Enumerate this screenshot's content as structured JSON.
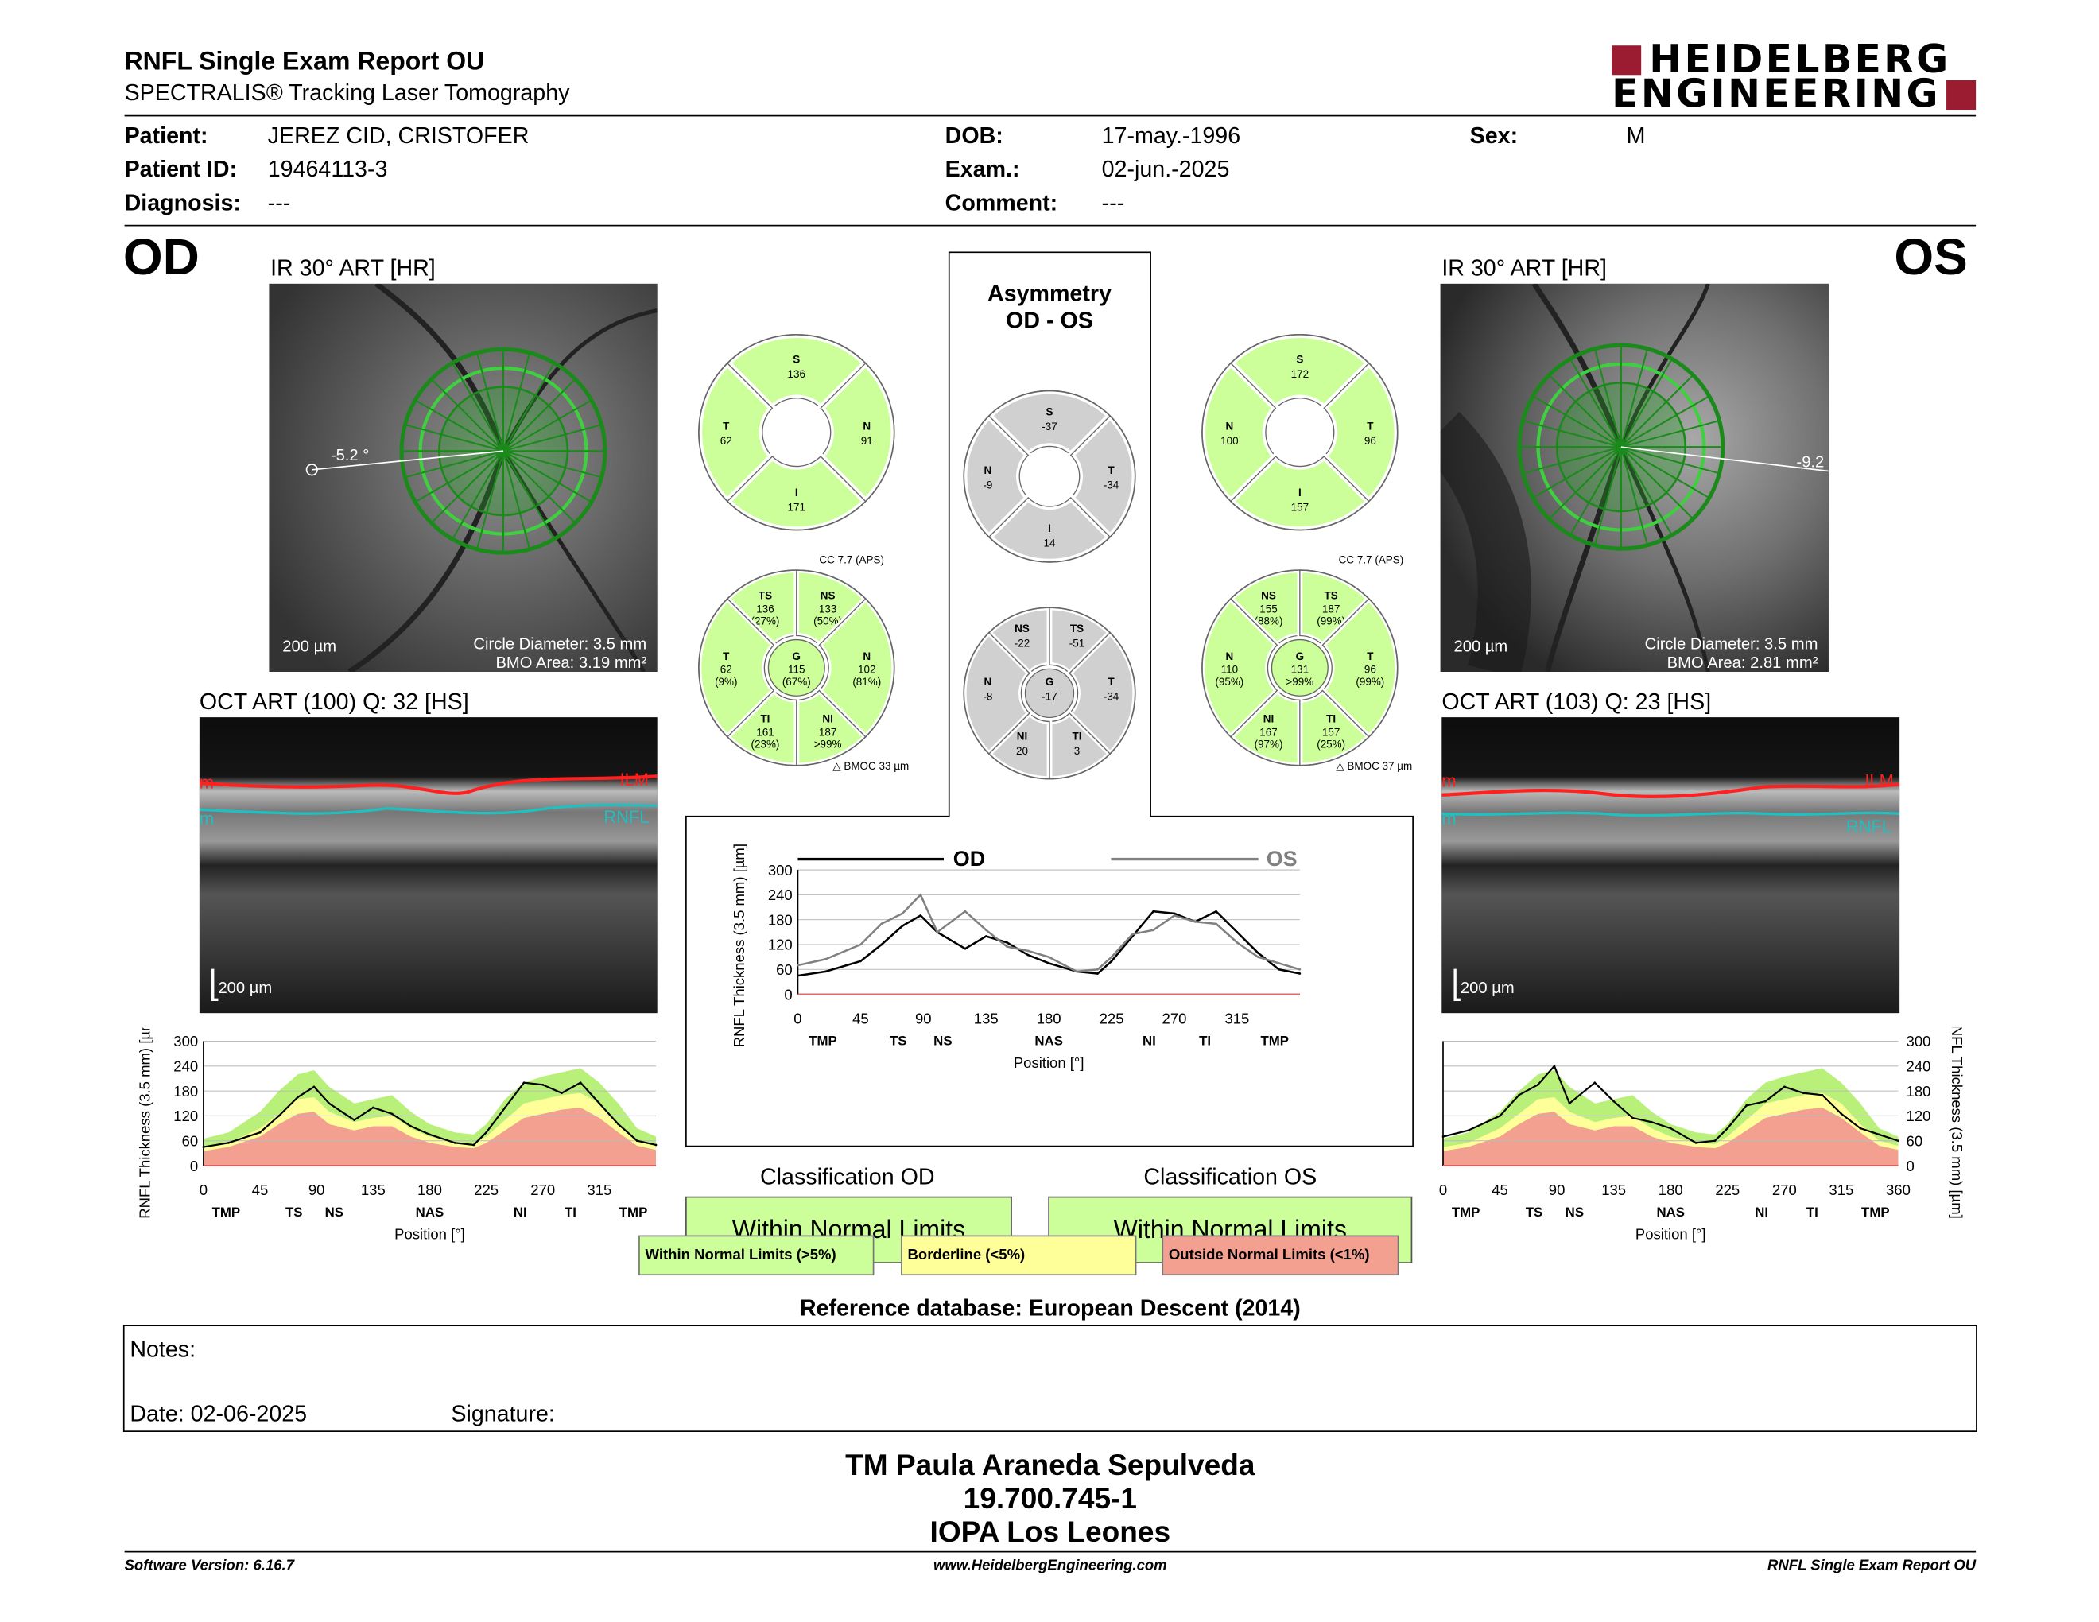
{
  "report": {
    "title": "RNFL Single Exam Report OU",
    "subtitle": "SPECTRALIS® Tracking Laser Tomography",
    "logo_line1": "HEIDELBERG",
    "logo_line2": "ENGINEERING"
  },
  "patient": {
    "patient_label": "Patient:",
    "patient_value": "JEREZ CID, CRISTOFER",
    "id_label": "Patient ID:",
    "id_value": "19464113-3",
    "diagnosis_label": "Diagnosis:",
    "diagnosis_value": "---",
    "dob_label": "DOB:",
    "dob_value": "17-may.-1996",
    "exam_label": "Exam.:",
    "exam_value": "02-jun.-2025",
    "comment_label": "Comment:",
    "comment_value": "---",
    "sex_label": "Sex:",
    "sex_value": "M"
  },
  "od": {
    "eye": "OD",
    "ir_title": "IR 30° ART [HR]",
    "angle": "-5.2 °",
    "scale": "200 µm",
    "circle_diameter": "Circle Diameter: 3.5 mm",
    "bmo_area": "BMO Area: 3.19 mm²",
    "oct_title": "OCT ART (100) Q: 32 [HS]",
    "oct_scale": "200 µm",
    "ilm": "ILM",
    "rnfl": "RNFL",
    "edge_m": "m",
    "classification_title": "Classification OD",
    "classification": "Within Normal Limits",
    "sectors4": {
      "S": "136",
      "T": "62",
      "N": "91",
      "I": "171"
    },
    "sectors6": {
      "TS": [
        "136",
        "(27%)"
      ],
      "NS": [
        "133",
        "(50%)"
      ],
      "T": [
        "62",
        "(9%)"
      ],
      "G": [
        "115",
        "(67%)"
      ],
      "N": [
        "102",
        "(81%)"
      ],
      "TI": [
        "161",
        "(23%)"
      ],
      "NI": [
        "187",
        ">99%"
      ]
    },
    "cc": "CC 7.7 (APS)",
    "bmoc": "BMOC 33 µm"
  },
  "os": {
    "eye": "OS",
    "ir_title": "IR 30° ART [HR]",
    "angle": "-9.2",
    "scale": "200 µm",
    "circle_diameter": "Circle Diameter: 3.5 mm",
    "bmo_area": "BMO Area: 2.81 mm²",
    "oct_title": "OCT ART (103) Q: 23 [HS]",
    "oct_scale": "200 µm",
    "ilm": "ILM",
    "rnfl": "RNFL",
    "edge_m": "m",
    "classification_title": "Classification OS",
    "classification": "Within Normal Limits",
    "sectors4": {
      "S": "172",
      "N": "100",
      "T": "96",
      "I": "157"
    },
    "sectors6": {
      "NS": [
        "155",
        "(88%)"
      ],
      "TS": [
        "187",
        "(99%)"
      ],
      "N": [
        "110",
        "(95%)"
      ],
      "G": [
        "131",
        ">99%"
      ],
      "T": [
        "96",
        "(99%)"
      ],
      "NI": [
        "167",
        "(97%)"
      ],
      "TI": [
        "157",
        "(25%)"
      ]
    },
    "cc": "CC 7.7 (APS)",
    "bmoc": "BMOC 37 µm"
  },
  "asymmetry": {
    "title1": "Asymmetry",
    "title2": "OD - OS",
    "sectors4": {
      "S": "-37",
      "N": "-9",
      "T": "-34",
      "I": "14"
    },
    "sectors6": {
      "NS": "-22",
      "TS": "-51",
      "N": "-8",
      "G": "-17",
      "T": "-34",
      "NI": "20",
      "TI": "3"
    }
  },
  "chart_data": [
    {
      "type": "line",
      "name": "OD profile",
      "ylabel": "RNFL Thickness (3.5 mm) [µm]",
      "xlabel": "Position [°]",
      "ylim": [
        0,
        300
      ],
      "xlim": [
        0,
        360
      ],
      "y_ticks": [
        "300",
        "240",
        "180",
        "120",
        "60",
        "0"
      ],
      "x_ticks": [
        "0",
        "45",
        "90",
        "135",
        "180",
        "225",
        "270",
        "315"
      ],
      "sector_labels": [
        "TMP",
        "TS",
        "NS",
        "NAS",
        "NI",
        "TI",
        "TMP"
      ],
      "normal_bands": {
        "green": "#b8f07a",
        "yellow": "#ffff99",
        "red": "#f4a090"
      },
      "x": [
        0,
        20,
        45,
        60,
        75,
        88,
        100,
        120,
        135,
        150,
        165,
        180,
        200,
        215,
        225,
        240,
        255,
        270,
        285,
        300,
        315,
        330,
        345,
        360
      ],
      "series": [
        {
          "name": "",
          "values": [
            45,
            55,
            80,
            120,
            165,
            190,
            150,
            110,
            140,
            125,
            95,
            75,
            55,
            50,
            80,
            140,
            200,
            195,
            175,
            200,
            150,
            100,
            60,
            50
          ]
        }
      ],
      "band_green_upper": [
        65,
        80,
        130,
        180,
        220,
        230,
        190,
        150,
        160,
        170,
        130,
        100,
        80,
        75,
        100,
        160,
        200,
        215,
        225,
        235,
        200,
        150,
        90,
        70
      ],
      "band_yellow_upper": [
        45,
        55,
        90,
        125,
        160,
        165,
        130,
        105,
        115,
        120,
        90,
        70,
        55,
        52,
        70,
        110,
        150,
        160,
        170,
        175,
        150,
        100,
        60,
        48
      ],
      "band_red_upper": [
        35,
        45,
        70,
        100,
        125,
        130,
        100,
        85,
        95,
        95,
        70,
        55,
        45,
        42,
        55,
        85,
        115,
        125,
        135,
        140,
        115,
        80,
        48,
        38
      ]
    },
    {
      "type": "line",
      "name": "OS profile",
      "ylabel": "RNFL Thickness (3.5 mm) [µm]",
      "xlabel": "Position [°]",
      "ylim": [
        0,
        300
      ],
      "xlim": [
        0,
        360
      ],
      "y_ticks": [
        "300",
        "240",
        "180",
        "120",
        "60",
        "0"
      ],
      "x_ticks": [
        "0",
        "45",
        "90",
        "135",
        "180",
        "225",
        "270",
        "315",
        "360"
      ],
      "sector_labels": [
        "TMP",
        "TS",
        "NS",
        "NAS",
        "NI",
        "TI",
        "TMP"
      ],
      "x": [
        0,
        20,
        45,
        60,
        75,
        88,
        100,
        120,
        135,
        150,
        165,
        180,
        200,
        215,
        225,
        240,
        255,
        270,
        285,
        300,
        315,
        330,
        345,
        360
      ],
      "series": [
        {
          "name": "",
          "values": [
            70,
            85,
            120,
            170,
            195,
            240,
            150,
            200,
            155,
            115,
            105,
            90,
            55,
            60,
            90,
            145,
            155,
            190,
            175,
            170,
            125,
            90,
            75,
            60
          ]
        }
      ],
      "band_green_upper": [
        65,
        80,
        130,
        180,
        220,
        230,
        190,
        150,
        160,
        170,
        130,
        100,
        80,
        75,
        100,
        160,
        200,
        215,
        225,
        235,
        200,
        150,
        90,
        70
      ],
      "band_yellow_upper": [
        45,
        55,
        90,
        125,
        160,
        165,
        130,
        105,
        115,
        120,
        90,
        70,
        55,
        52,
        70,
        110,
        150,
        160,
        170,
        175,
        150,
        100,
        60,
        48
      ],
      "band_red_upper": [
        35,
        45,
        70,
        100,
        125,
        130,
        100,
        85,
        95,
        95,
        70,
        55,
        45,
        42,
        55,
        85,
        115,
        125,
        135,
        140,
        115,
        80,
        48,
        38
      ]
    },
    {
      "type": "line",
      "name": "OD vs OS comparison",
      "ylabel": "RNFL Thickness (3.5 mm) [µm]",
      "xlabel": "Position [°]",
      "ylim": [
        0,
        300
      ],
      "xlim": [
        0,
        360
      ],
      "y_ticks": [
        "300",
        "240",
        "180",
        "120",
        "60",
        "0"
      ],
      "x_ticks": [
        "0",
        "45",
        "90",
        "135",
        "180",
        "225",
        "270",
        "315"
      ],
      "sector_labels": [
        "TMP",
        "TS",
        "NS",
        "NAS",
        "NI",
        "TI",
        "TMP"
      ],
      "x": [
        0,
        20,
        45,
        60,
        75,
        88,
        100,
        120,
        135,
        150,
        165,
        180,
        200,
        215,
        225,
        240,
        255,
        270,
        285,
        300,
        315,
        330,
        345,
        360
      ],
      "series": [
        {
          "name": "OD",
          "color": "#000000",
          "values": [
            45,
            55,
            80,
            120,
            165,
            190,
            150,
            110,
            140,
            125,
            95,
            75,
            55,
            50,
            80,
            140,
            200,
            195,
            175,
            200,
            150,
            100,
            60,
            50
          ]
        },
        {
          "name": "OS",
          "color": "#808080",
          "values": [
            70,
            85,
            120,
            170,
            195,
            240,
            150,
            200,
            155,
            115,
            105,
            90,
            55,
            60,
            90,
            145,
            155,
            190,
            175,
            170,
            125,
            90,
            75,
            60
          ]
        }
      ]
    }
  ],
  "legend": {
    "normal": "Within Normal Limits (>5%)",
    "borderline": "Borderline (<5%)",
    "outside": "Outside Normal Limits (<1%)"
  },
  "reference": "Reference database: European Descent (2014)",
  "notes": {
    "label": "Notes:",
    "date": "Date: 02-06-2025",
    "signature": "Signature:"
  },
  "signer": {
    "name": "TM Paula Araneda Sepulveda",
    "id": "19.700.745-1",
    "place": "IOPA Los Leones"
  },
  "footer": {
    "version": "Software Version: 6.16.7",
    "url": "www.HeidelbergEngineering.com",
    "report": "RNFL Single Exam Report OU"
  },
  "colors": {
    "brand_red": "#9b1b30",
    "wnl_green": "#ccff99",
    "border_yellow": "#ffff99",
    "outside_red": "#f4a090",
    "sector_gray": "#d0d0d0",
    "ilm_red": "#ff2020",
    "rnfl_cyan": "#20c0c0"
  }
}
